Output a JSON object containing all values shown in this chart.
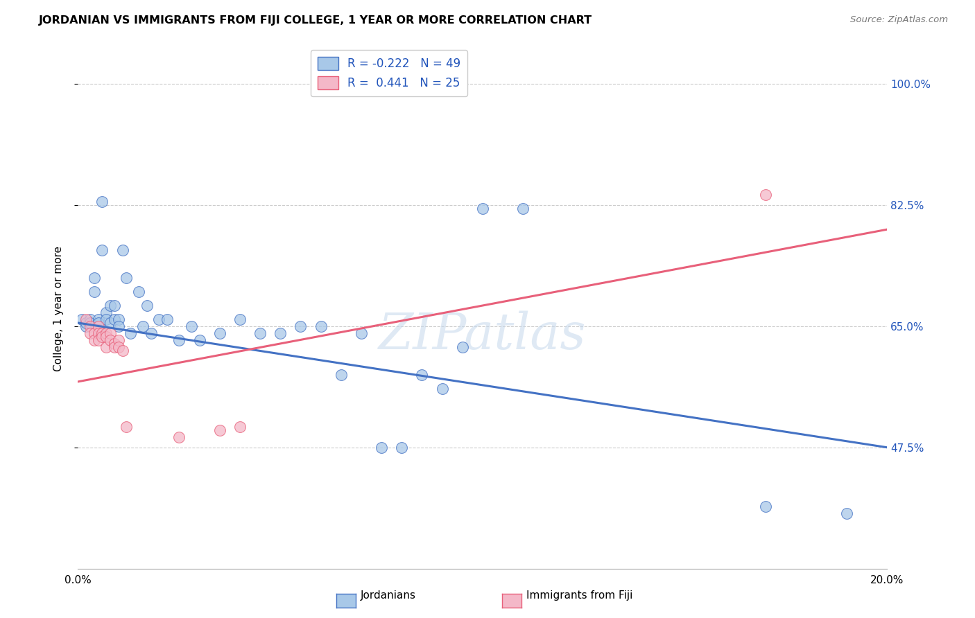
{
  "title": "JORDANIAN VS IMMIGRANTS FROM FIJI COLLEGE, 1 YEAR OR MORE CORRELATION CHART",
  "source": "Source: ZipAtlas.com",
  "ylabel": "College, 1 year or more",
  "legend_label_blue": "Jordanians",
  "legend_label_pink": "Immigrants from Fiji",
  "r_blue": -0.222,
  "n_blue": 49,
  "r_pink": 0.441,
  "n_pink": 25,
  "xmin": 0.0,
  "xmax": 0.2,
  "ymin": 0.3,
  "ymax": 1.05,
  "yticks": [
    0.475,
    0.65,
    0.825,
    1.0
  ],
  "ytick_labels": [
    "47.5%",
    "65.0%",
    "82.5%",
    "100.0%"
  ],
  "color_blue": "#a8c8e8",
  "color_pink": "#f4b8c8",
  "line_blue": "#4472c4",
  "line_pink": "#e8607a",
  "watermark": "ZIPatlas",
  "blue_line_y0": 0.655,
  "blue_line_y1": 0.475,
  "pink_line_y0": 0.57,
  "pink_line_y1": 0.79,
  "blue_x": [
    0.001,
    0.002,
    0.002,
    0.003,
    0.003,
    0.004,
    0.004,
    0.005,
    0.005,
    0.005,
    0.006,
    0.006,
    0.007,
    0.007,
    0.008,
    0.008,
    0.009,
    0.009,
    0.01,
    0.01,
    0.011,
    0.012,
    0.013,
    0.015,
    0.016,
    0.017,
    0.018,
    0.02,
    0.022,
    0.025,
    0.028,
    0.03,
    0.035,
    0.04,
    0.045,
    0.05,
    0.055,
    0.06,
    0.065,
    0.07,
    0.075,
    0.08,
    0.085,
    0.09,
    0.095,
    0.1,
    0.11,
    0.17,
    0.19
  ],
  "blue_y": [
    0.66,
    0.65,
    0.655,
    0.66,
    0.655,
    0.72,
    0.7,
    0.66,
    0.655,
    0.645,
    0.76,
    0.83,
    0.67,
    0.66,
    0.68,
    0.655,
    0.68,
    0.66,
    0.66,
    0.65,
    0.76,
    0.72,
    0.64,
    0.7,
    0.65,
    0.68,
    0.64,
    0.66,
    0.66,
    0.63,
    0.65,
    0.63,
    0.64,
    0.66,
    0.64,
    0.64,
    0.65,
    0.65,
    0.58,
    0.64,
    0.475,
    0.475,
    0.58,
    0.56,
    0.62,
    0.82,
    0.82,
    0.39,
    0.38
  ],
  "pink_x": [
    0.002,
    0.003,
    0.003,
    0.004,
    0.004,
    0.005,
    0.005,
    0.005,
    0.006,
    0.006,
    0.007,
    0.007,
    0.007,
    0.008,
    0.008,
    0.009,
    0.009,
    0.01,
    0.01,
    0.011,
    0.012,
    0.025,
    0.035,
    0.04,
    0.17
  ],
  "pink_y": [
    0.66,
    0.65,
    0.64,
    0.64,
    0.63,
    0.65,
    0.64,
    0.63,
    0.64,
    0.635,
    0.64,
    0.635,
    0.62,
    0.64,
    0.63,
    0.625,
    0.62,
    0.63,
    0.62,
    0.615,
    0.505,
    0.49,
    0.5,
    0.505,
    0.84
  ]
}
